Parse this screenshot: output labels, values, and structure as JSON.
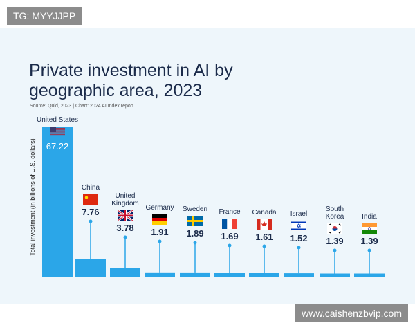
{
  "chart_data": {
    "type": "bar",
    "title": "Private investment in AI by geographic area, 2023",
    "source": "Source: Quid, 2023 | Chart: 2024 AI Index report",
    "y_label": "Total investment (in billions of U.S. dollars)",
    "categories": [
      "United States",
      "China",
      "United Kingdom",
      "Germany",
      "Sweden",
      "France",
      "Canada",
      "Israel",
      "South Korea",
      "India"
    ],
    "values": [
      67.22,
      7.76,
      3.78,
      1.91,
      1.89,
      1.69,
      1.61,
      1.52,
      1.39,
      1.39
    ],
    "color": "#2ba6e8",
    "ylim": [
      0,
      68
    ]
  },
  "watermarks": [
    "TG: MYYJJPP",
    "www.caishenzbvip.com"
  ]
}
